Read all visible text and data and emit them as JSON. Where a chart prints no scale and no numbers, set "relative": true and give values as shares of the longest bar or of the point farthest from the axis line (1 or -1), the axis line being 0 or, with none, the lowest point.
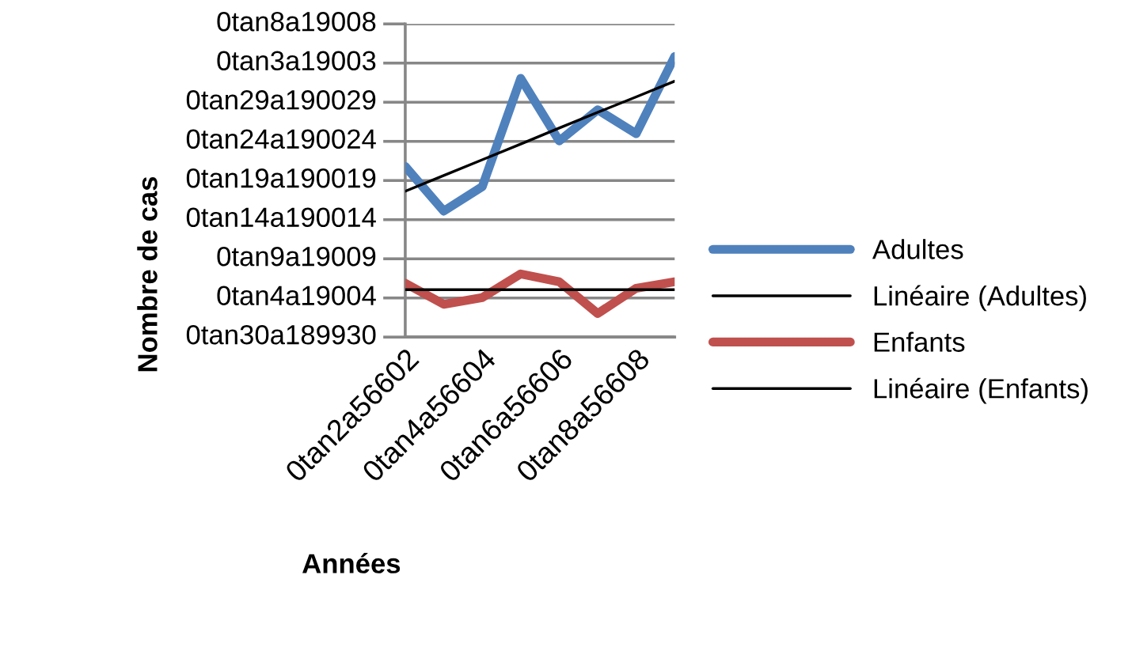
{
  "chart_data": {
    "type": "line",
    "xlabel": "Années",
    "ylabel": "Nombre de cas",
    "relative": true,
    "categories": [
      "0tan2a56602",
      null,
      "0tan4a56604",
      null,
      "0tan6a56606",
      null,
      "0tan8a56608",
      null
    ],
    "series": [
      {
        "name": "Adultes",
        "color": "#4f81bd",
        "values": [
          0.608,
          0.449,
          0.536,
          0.922,
          0.699,
          0.81,
          0.725,
          1
        ]
      },
      {
        "name": "Linéaire (Adultes)",
        "color": "#000000",
        "values": [
          0.52,
          0.576,
          0.632,
          0.688,
          0.745,
          0.801,
          0.856,
          0.912
        ]
      },
      {
        "name": "Enfants",
        "color": "#c0504d",
        "values": [
          0.192,
          0.117,
          0.141,
          0.225,
          0.197,
          0.084,
          0.174,
          0.197
        ]
      },
      {
        "name": "Linéaire (Enfants)",
        "color": "#000000",
        "values": [
          0.169,
          0.169,
          0.169,
          0.169,
          0.169,
          0.169,
          0.169,
          0.169
        ]
      }
    ],
    "ylim": [
      0,
      1.116
    ],
    "annotations": [
      "0tan30a189930",
      "0tan4a19004",
      "0tan9a19009",
      "0tan14a190014",
      "0tan19a190019",
      "0tan24a190024",
      "0tan29a190029",
      "0tan3a19003",
      "0tan8a19008"
    ],
    "grid": "y",
    "legend": "right",
    "marker": "none",
    "line_style": "solid"
  }
}
